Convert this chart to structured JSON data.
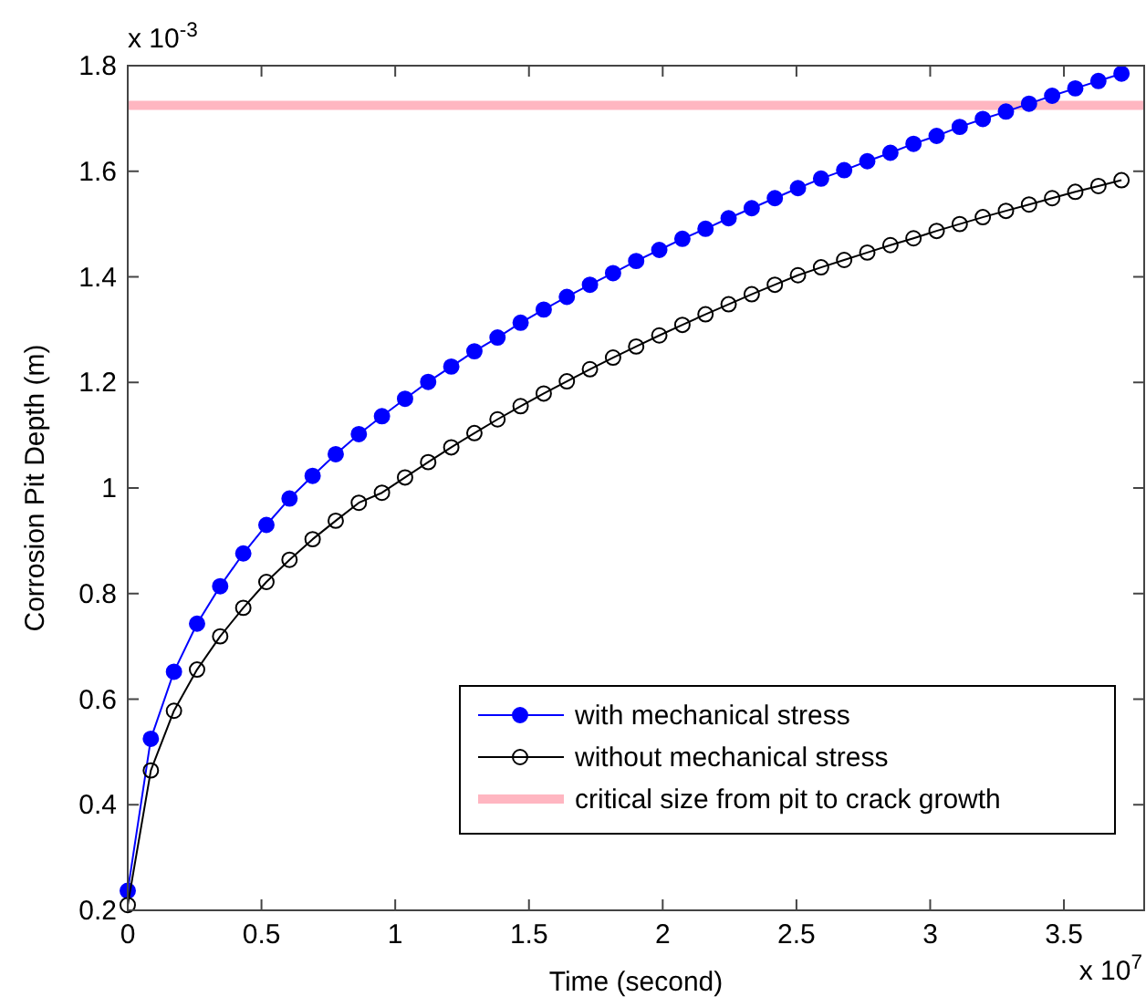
{
  "chart_data": {
    "type": "line",
    "xlabel": "Time (second)",
    "ylabel": "Corrosion Pit Depth (m)",
    "x": [
      0,
      0.0864,
      0.1728,
      0.2592,
      0.3456,
      0.432,
      0.5184,
      0.6048,
      0.6912,
      0.7776,
      0.864,
      0.9504,
      1.0368,
      1.1232,
      1.2096,
      1.296,
      1.3824,
      1.4688,
      1.5552,
      1.6416,
      1.728,
      1.8144,
      1.9008,
      1.9872,
      2.0736,
      2.16,
      2.2464,
      2.3328,
      2.4192,
      2.5056,
      2.592,
      2.6784,
      2.7648,
      2.8512,
      2.9376,
      3.024,
      3.1104,
      3.1968,
      3.2832,
      3.3696,
      3.456,
      3.5424,
      3.6288,
      3.7152
    ],
    "series": [
      {
        "name": "with mechanical stress",
        "color": "#0000ff",
        "marker": "circle",
        "values": [
          0.237,
          0.525,
          0.652,
          0.743,
          0.814,
          0.876,
          0.93,
          0.98,
          1.023,
          1.064,
          1.102,
          1.136,
          1.169,
          1.201,
          1.23,
          1.259,
          1.285,
          1.313,
          1.338,
          1.362,
          1.385,
          1.407,
          1.43,
          1.451,
          1.472,
          1.491,
          1.511,
          1.53,
          1.549,
          1.568,
          1.586,
          1.602,
          1.619,
          1.635,
          1.652,
          1.667,
          1.684,
          1.699,
          1.713,
          1.728,
          1.743,
          1.757,
          1.771,
          1.785
        ]
      },
      {
        "name": "without mechanical stress",
        "color": "#000000",
        "marker": "circle",
        "values": [
          0.21,
          0.465,
          0.578,
          0.656,
          0.719,
          0.773,
          0.822,
          0.864,
          0.903,
          0.938,
          0.972,
          0.991,
          1.02,
          1.049,
          1.077,
          1.104,
          1.13,
          1.155,
          1.179,
          1.202,
          1.225,
          1.247,
          1.268,
          1.289,
          1.309,
          1.329,
          1.348,
          1.367,
          1.385,
          1.403,
          1.418,
          1.432,
          1.446,
          1.46,
          1.473,
          1.487,
          1.5,
          1.513,
          1.525,
          1.537,
          1.549,
          1.561,
          1.572,
          1.583
        ]
      }
    ],
    "ref_lines": [
      {
        "axis": "y",
        "value": 1.725,
        "label": "critical size from pit to crack growth",
        "color": "#ffb6c1"
      }
    ],
    "xlim": [
      0,
      3.8
    ],
    "xticks": [
      0,
      0.5,
      1,
      1.5,
      2,
      2.5,
      3,
      3.5
    ],
    "ylim": [
      0.2,
      1.8
    ],
    "yticks": [
      0.2,
      0.4,
      0.6,
      0.8,
      1,
      1.2,
      1.4,
      1.6,
      1.8
    ],
    "annotations": [
      "x 10$^{-3}$",
      "x 10$^{7}$"
    ],
    "grid": false,
    "legend": "bottom right",
    "line_style": "solid"
  }
}
